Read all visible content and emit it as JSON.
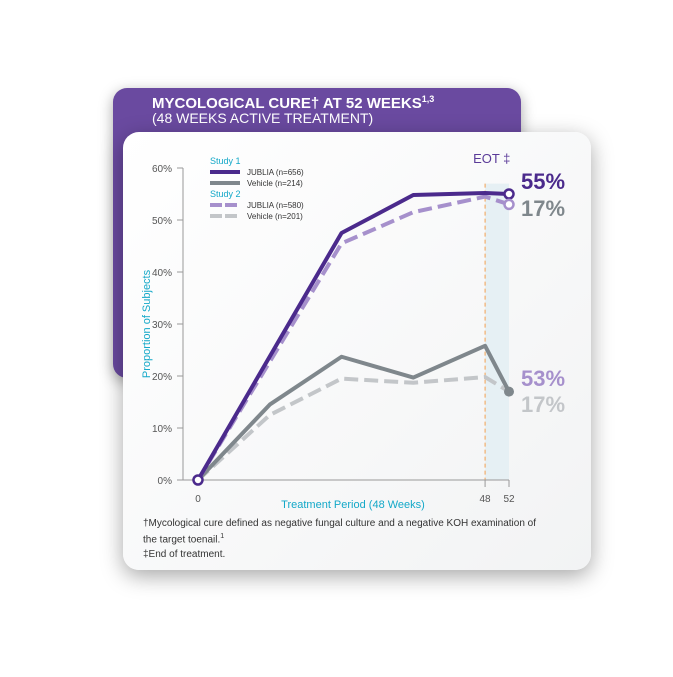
{
  "chart_data": {
    "type": "line",
    "title": "MYCOLOGICAL CURE† AT 52 WEEKS",
    "title_superscript": "1,3",
    "subtitle": "(48 WEEKS ACTIVE TREATMENT)",
    "xlabel": "Treatment Period (48 Weeks)",
    "ylabel": "Proportion of Subjects",
    "xlim": [
      0,
      52
    ],
    "ylim": [
      0,
      60
    ],
    "x_ticks": [
      0,
      48,
      52
    ],
    "y_ticks": [
      "0%",
      "10%",
      "20%",
      "30%",
      "40%",
      "50%",
      "60%"
    ],
    "eot_label": "EOT",
    "eot_mark": "‡",
    "eot_week": 48,
    "legend_groups": [
      "Study 1",
      "Study 2"
    ],
    "series": [
      {
        "name": "JUBLIA (n=656)",
        "study": "Study 1",
        "color": "#4b2a8c",
        "dashed": false,
        "x": [
          0,
          24,
          36,
          48,
          52
        ],
        "y": [
          0,
          47.5,
          54.8,
          55.2,
          55
        ],
        "end_label": "55%",
        "end_marker": "open"
      },
      {
        "name": "Vehicle (n=214)",
        "study": "Study 1",
        "color": "#7f878c",
        "dashed": false,
        "x": [
          0,
          12,
          24,
          36,
          48,
          52
        ],
        "y": [
          0,
          14.5,
          23.7,
          19.7,
          25.8,
          17
        ],
        "end_label": "17%",
        "end_marker": "filled"
      },
      {
        "name": "JUBLIA (n=580)",
        "study": "Study 2",
        "color": "#a690cc",
        "dashed": true,
        "x": [
          0,
          24,
          36,
          48,
          52
        ],
        "y": [
          0,
          45.5,
          51.5,
          54.5,
          53
        ],
        "end_label": "53%",
        "end_marker": "open"
      },
      {
        "name": "Vehicle (n=201)",
        "study": "Study 2",
        "color": "#c3c6c9",
        "dashed": true,
        "x": [
          0,
          12,
          24,
          36,
          48,
          52
        ],
        "y": [
          0,
          12.5,
          19.5,
          18.7,
          19.8,
          17
        ],
        "end_label": "17%",
        "end_marker": "none"
      }
    ]
  },
  "footnotes": {
    "dagger": "†Mycological cure defined as negative fungal culture and a negative KOH examination of the target toenail.",
    "dagger_ref": "1",
    "double_dagger": "‡End of treatment."
  }
}
